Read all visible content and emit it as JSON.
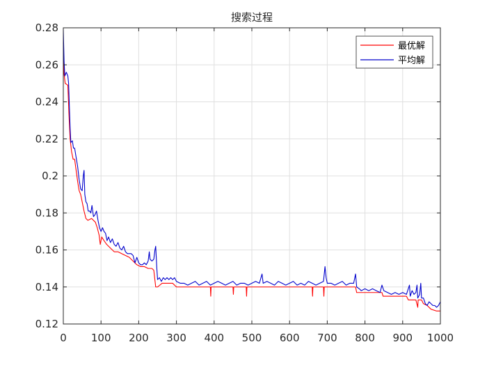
{
  "chart_data": {
    "type": "line",
    "title": "搜索过程",
    "xlabel": "",
    "ylabel": "",
    "xlim": [
      0,
      1000
    ],
    "ylim": [
      0.12,
      0.28
    ],
    "xticks": [
      0,
      100,
      200,
      300,
      400,
      500,
      600,
      700,
      800,
      900,
      1000
    ],
    "yticks": [
      0.12,
      0.14,
      0.16,
      0.18,
      0.2,
      0.22,
      0.24,
      0.26,
      0.28
    ],
    "xtick_labels": [
      "0",
      "100",
      "200",
      "300",
      "400",
      "500",
      "600",
      "700",
      "800",
      "900",
      "1000"
    ],
    "ytick_labels": [
      "0.12",
      "0.14",
      "0.16",
      "0.18",
      "0.2",
      "0.22",
      "0.24",
      "0.26",
      "0.28"
    ],
    "grid": true,
    "legend_position": "top-right",
    "series": [
      {
        "name": "最优解",
        "color": "#ff0000",
        "points": [
          [
            0,
            0.272
          ],
          [
            2,
            0.255
          ],
          [
            5,
            0.25
          ],
          [
            12,
            0.249
          ],
          [
            15,
            0.233
          ],
          [
            18,
            0.22
          ],
          [
            22,
            0.213
          ],
          [
            26,
            0.209
          ],
          [
            30,
            0.209
          ],
          [
            34,
            0.203
          ],
          [
            38,
            0.197
          ],
          [
            42,
            0.192
          ],
          [
            46,
            0.19
          ],
          [
            50,
            0.186
          ],
          [
            55,
            0.181
          ],
          [
            60,
            0.177
          ],
          [
            65,
            0.176
          ],
          [
            75,
            0.177
          ],
          [
            85,
            0.175
          ],
          [
            90,
            0.172
          ],
          [
            95,
            0.168
          ],
          [
            98,
            0.163
          ],
          [
            102,
            0.167
          ],
          [
            108,
            0.165
          ],
          [
            115,
            0.163
          ],
          [
            125,
            0.161
          ],
          [
            135,
            0.159
          ],
          [
            145,
            0.159
          ],
          [
            155,
            0.158
          ],
          [
            165,
            0.157
          ],
          [
            175,
            0.156
          ],
          [
            185,
            0.154
          ],
          [
            195,
            0.152
          ],
          [
            205,
            0.151
          ],
          [
            215,
            0.151
          ],
          [
            225,
            0.15
          ],
          [
            235,
            0.15
          ],
          [
            240,
            0.149
          ],
          [
            245,
            0.14
          ],
          [
            250,
            0.14
          ],
          [
            262,
            0.142
          ],
          [
            275,
            0.142
          ],
          [
            290,
            0.142
          ],
          [
            300,
            0.14
          ],
          [
            320,
            0.14
          ],
          [
            360,
            0.14
          ],
          [
            390,
            0.14
          ],
          [
            391,
            0.135
          ],
          [
            392,
            0.14
          ],
          [
            450,
            0.14
          ],
          [
            451,
            0.136
          ],
          [
            452,
            0.14
          ],
          [
            485,
            0.14
          ],
          [
            486,
            0.135
          ],
          [
            487,
            0.14
          ],
          [
            550,
            0.14
          ],
          [
            600,
            0.14
          ],
          [
            660,
            0.14
          ],
          [
            661,
            0.135
          ],
          [
            662,
            0.14
          ],
          [
            690,
            0.14
          ],
          [
            691,
            0.135
          ],
          [
            692,
            0.14
          ],
          [
            720,
            0.14
          ],
          [
            760,
            0.14
          ],
          [
            775,
            0.14
          ],
          [
            778,
            0.137
          ],
          [
            800,
            0.137
          ],
          [
            830,
            0.137
          ],
          [
            845,
            0.137
          ],
          [
            848,
            0.135
          ],
          [
            880,
            0.135
          ],
          [
            900,
            0.135
          ],
          [
            910,
            0.135
          ],
          [
            915,
            0.133
          ],
          [
            935,
            0.133
          ],
          [
            940,
            0.129
          ],
          [
            941,
            0.133
          ],
          [
            950,
            0.133
          ],
          [
            955,
            0.131
          ],
          [
            965,
            0.13
          ],
          [
            975,
            0.128
          ],
          [
            990,
            0.127
          ],
          [
            1000,
            0.127
          ]
        ]
      },
      {
        "name": "平均解",
        "color": "#0000cc",
        "points": [
          [
            0,
            0.279
          ],
          [
            2,
            0.262
          ],
          [
            4,
            0.254
          ],
          [
            8,
            0.256
          ],
          [
            12,
            0.254
          ],
          [
            14,
            0.25
          ],
          [
            16,
            0.238
          ],
          [
            18,
            0.226
          ],
          [
            20,
            0.218
          ],
          [
            24,
            0.219
          ],
          [
            27,
            0.215
          ],
          [
            30,
            0.215
          ],
          [
            34,
            0.21
          ],
          [
            38,
            0.205
          ],
          [
            42,
            0.198
          ],
          [
            46,
            0.193
          ],
          [
            50,
            0.192
          ],
          [
            53,
            0.2
          ],
          [
            55,
            0.203
          ],
          [
            57,
            0.19
          ],
          [
            60,
            0.186
          ],
          [
            63,
            0.185
          ],
          [
            66,
            0.181
          ],
          [
            70,
            0.181
          ],
          [
            73,
            0.18
          ],
          [
            76,
            0.184
          ],
          [
            80,
            0.178
          ],
          [
            84,
            0.179
          ],
          [
            88,
            0.181
          ],
          [
            92,
            0.176
          ],
          [
            96,
            0.172
          ],
          [
            100,
            0.17
          ],
          [
            104,
            0.172
          ],
          [
            108,
            0.17
          ],
          [
            112,
            0.169
          ],
          [
            116,
            0.165
          ],
          [
            120,
            0.167
          ],
          [
            125,
            0.164
          ],
          [
            130,
            0.166
          ],
          [
            135,
            0.163
          ],
          [
            140,
            0.162
          ],
          [
            145,
            0.164
          ],
          [
            150,
            0.161
          ],
          [
            155,
            0.16
          ],
          [
            160,
            0.162
          ],
          [
            165,
            0.159
          ],
          [
            170,
            0.158
          ],
          [
            175,
            0.158
          ],
          [
            180,
            0.158
          ],
          [
            185,
            0.157
          ],
          [
            190,
            0.153
          ],
          [
            195,
            0.156
          ],
          [
            200,
            0.153
          ],
          [
            205,
            0.152
          ],
          [
            210,
            0.152
          ],
          [
            215,
            0.153
          ],
          [
            220,
            0.152
          ],
          [
            225,
            0.154
          ],
          [
            228,
            0.159
          ],
          [
            230,
            0.155
          ],
          [
            235,
            0.154
          ],
          [
            240,
            0.155
          ],
          [
            243,
            0.16
          ],
          [
            245,
            0.162
          ],
          [
            248,
            0.15
          ],
          [
            250,
            0.144
          ],
          [
            255,
            0.145
          ],
          [
            260,
            0.143
          ],
          [
            265,
            0.145
          ],
          [
            270,
            0.144
          ],
          [
            275,
            0.145
          ],
          [
            280,
            0.144
          ],
          [
            285,
            0.145
          ],
          [
            290,
            0.144
          ],
          [
            295,
            0.145
          ],
          [
            300,
            0.143
          ],
          [
            310,
            0.142
          ],
          [
            320,
            0.142
          ],
          [
            330,
            0.141
          ],
          [
            340,
            0.142
          ],
          [
            350,
            0.143
          ],
          [
            360,
            0.141
          ],
          [
            370,
            0.142
          ],
          [
            380,
            0.143
          ],
          [
            390,
            0.141
          ],
          [
            400,
            0.142
          ],
          [
            410,
            0.143
          ],
          [
            420,
            0.142
          ],
          [
            430,
            0.141
          ],
          [
            440,
            0.142
          ],
          [
            450,
            0.143
          ],
          [
            460,
            0.141
          ],
          [
            470,
            0.142
          ],
          [
            480,
            0.142
          ],
          [
            490,
            0.141
          ],
          [
            500,
            0.142
          ],
          [
            510,
            0.143
          ],
          [
            520,
            0.142
          ],
          [
            527,
            0.147
          ],
          [
            530,
            0.142
          ],
          [
            540,
            0.143
          ],
          [
            550,
            0.142
          ],
          [
            560,
            0.141
          ],
          [
            570,
            0.143
          ],
          [
            580,
            0.142
          ],
          [
            590,
            0.141
          ],
          [
            600,
            0.142
          ],
          [
            610,
            0.143
          ],
          [
            620,
            0.141
          ],
          [
            630,
            0.142
          ],
          [
            640,
            0.141
          ],
          [
            650,
            0.143
          ],
          [
            660,
            0.142
          ],
          [
            670,
            0.141
          ],
          [
            680,
            0.142
          ],
          [
            690,
            0.143
          ],
          [
            694,
            0.151
          ],
          [
            697,
            0.145
          ],
          [
            700,
            0.142
          ],
          [
            710,
            0.142
          ],
          [
            720,
            0.141
          ],
          [
            730,
            0.142
          ],
          [
            740,
            0.143
          ],
          [
            750,
            0.141
          ],
          [
            760,
            0.142
          ],
          [
            770,
            0.142
          ],
          [
            775,
            0.147
          ],
          [
            778,
            0.14
          ],
          [
            785,
            0.139
          ],
          [
            790,
            0.138
          ],
          [
            800,
            0.139
          ],
          [
            810,
            0.138
          ],
          [
            820,
            0.139
          ],
          [
            830,
            0.138
          ],
          [
            840,
            0.137
          ],
          [
            845,
            0.141
          ],
          [
            850,
            0.138
          ],
          [
            860,
            0.137
          ],
          [
            870,
            0.136
          ],
          [
            880,
            0.137
          ],
          [
            890,
            0.136
          ],
          [
            900,
            0.137
          ],
          [
            910,
            0.136
          ],
          [
            918,
            0.141
          ],
          [
            920,
            0.135
          ],
          [
            925,
            0.138
          ],
          [
            930,
            0.136
          ],
          [
            935,
            0.137
          ],
          [
            938,
            0.141
          ],
          [
            940,
            0.134
          ],
          [
            945,
            0.136
          ],
          [
            948,
            0.142
          ],
          [
            950,
            0.134
          ],
          [
            955,
            0.134
          ],
          [
            960,
            0.131
          ],
          [
            965,
            0.13
          ],
          [
            970,
            0.132
          ],
          [
            975,
            0.131
          ],
          [
            980,
            0.13
          ],
          [
            985,
            0.13
          ],
          [
            990,
            0.129
          ],
          [
            995,
            0.13
          ],
          [
            1000,
            0.132
          ]
        ]
      }
    ]
  }
}
